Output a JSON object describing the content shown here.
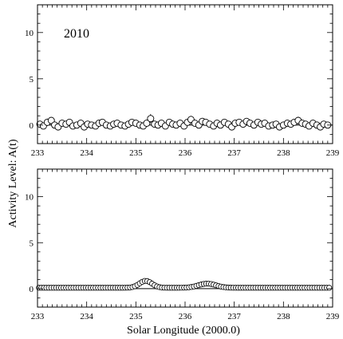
{
  "chart_data": [
    {
      "type": "scatter",
      "annotation": "2010",
      "xlim": [
        233,
        239
      ],
      "ylim": [
        -2,
        13
      ],
      "x_ticks": [
        "233",
        "234",
        "235",
        "236",
        "237",
        "238",
        "239"
      ],
      "y_ticks": [
        "0",
        "5",
        "10"
      ],
      "zero_line": true,
      "marker": "open-circle",
      "points": {
        "x": [
          233.05,
          233.12,
          233.2,
          233.28,
          233.35,
          233.42,
          233.5,
          233.58,
          233.65,
          233.72,
          233.8,
          233.88,
          233.95,
          234.02,
          234.1,
          234.18,
          234.25,
          234.32,
          234.4,
          234.48,
          234.55,
          234.62,
          234.7,
          234.78,
          234.85,
          234.92,
          235.0,
          235.08,
          235.15,
          235.22,
          235.3,
          235.38,
          235.45,
          235.52,
          235.6,
          235.68,
          235.75,
          235.82,
          235.9,
          235.98,
          236.05,
          236.12,
          236.2,
          236.28,
          236.35,
          236.42,
          236.5,
          236.58,
          236.65,
          236.72,
          236.8,
          236.88,
          236.95,
          237.02,
          237.1,
          237.18,
          237.25,
          237.32,
          237.4,
          237.48,
          237.55,
          237.62,
          237.7,
          237.78,
          237.85,
          237.92,
          238.0,
          238.08,
          238.15,
          238.22,
          238.3,
          238.38,
          238.45,
          238.52,
          238.6,
          238.68,
          238.75,
          238.82,
          238.9
        ],
        "y": [
          0.1,
          -0.1,
          0.3,
          0.5,
          0.0,
          -0.2,
          0.2,
          0.1,
          0.3,
          -0.1,
          0.0,
          0.2,
          -0.2,
          0.1,
          0.0,
          -0.1,
          0.2,
          0.3,
          0.0,
          -0.1,
          0.1,
          0.2,
          0.0,
          -0.1,
          0.1,
          0.3,
          0.2,
          0.0,
          -0.1,
          0.2,
          0.7,
          0.1,
          0.0,
          0.2,
          -0.1,
          0.3,
          0.1,
          0.0,
          0.2,
          -0.1,
          0.3,
          0.6,
          0.2,
          0.0,
          0.4,
          0.3,
          0.1,
          -0.1,
          0.2,
          0.0,
          0.3,
          0.1,
          -0.2,
          0.2,
          0.3,
          0.1,
          0.4,
          0.2,
          0.0,
          0.3,
          0.1,
          0.2,
          -0.1,
          0.0,
          0.1,
          -0.2,
          0.0,
          0.2,
          0.1,
          0.3,
          0.5,
          0.2,
          0.1,
          -0.1,
          0.2,
          0.0,
          -0.2,
          0.1,
          0.0
        ],
        "err": [
          0.3,
          0.3,
          0.4,
          0.3,
          0.3,
          0.3,
          0.3,
          0.3,
          0.3,
          0.3,
          0.3,
          0.3,
          0.3,
          0.3,
          0.3,
          0.3,
          0.3,
          0.3,
          0.3,
          0.3,
          0.3,
          0.3,
          0.3,
          0.3,
          0.3,
          0.3,
          0.3,
          0.3,
          0.3,
          0.3,
          0.5,
          0.3,
          0.3,
          0.3,
          0.3,
          0.3,
          0.3,
          0.3,
          0.3,
          0.3,
          0.3,
          0.4,
          0.3,
          0.3,
          0.3,
          0.3,
          0.3,
          0.3,
          0.3,
          0.3,
          0.3,
          0.3,
          0.3,
          0.3,
          0.3,
          0.3,
          0.3,
          0.3,
          0.3,
          0.3,
          0.3,
          0.3,
          0.3,
          0.3,
          0.3,
          0.3,
          0.3,
          0.3,
          0.3,
          0.3,
          0.4,
          0.3,
          0.3,
          0.3,
          0.3,
          0.3,
          0.3,
          0.3,
          0.3
        ]
      }
    },
    {
      "type": "scatter",
      "xlim": [
        233,
        239
      ],
      "ylim": [
        -2,
        13
      ],
      "x_ticks": [
        "233",
        "234",
        "235",
        "236",
        "237",
        "238",
        "239"
      ],
      "y_ticks": [
        "0",
        "5",
        "10"
      ],
      "zero_line": true,
      "marker": "open-circle",
      "model_curve": {
        "baseline": 0.1,
        "peaks": [
          {
            "center": 235.2,
            "height": 0.75,
            "width": 0.18
          },
          {
            "center": 236.45,
            "height": 0.45,
            "width": 0.25
          }
        ]
      }
    }
  ],
  "axes_text": {
    "ylabel": "Activity Level: A(t)",
    "xlabel": "Solar Longitude (2000.0)"
  }
}
